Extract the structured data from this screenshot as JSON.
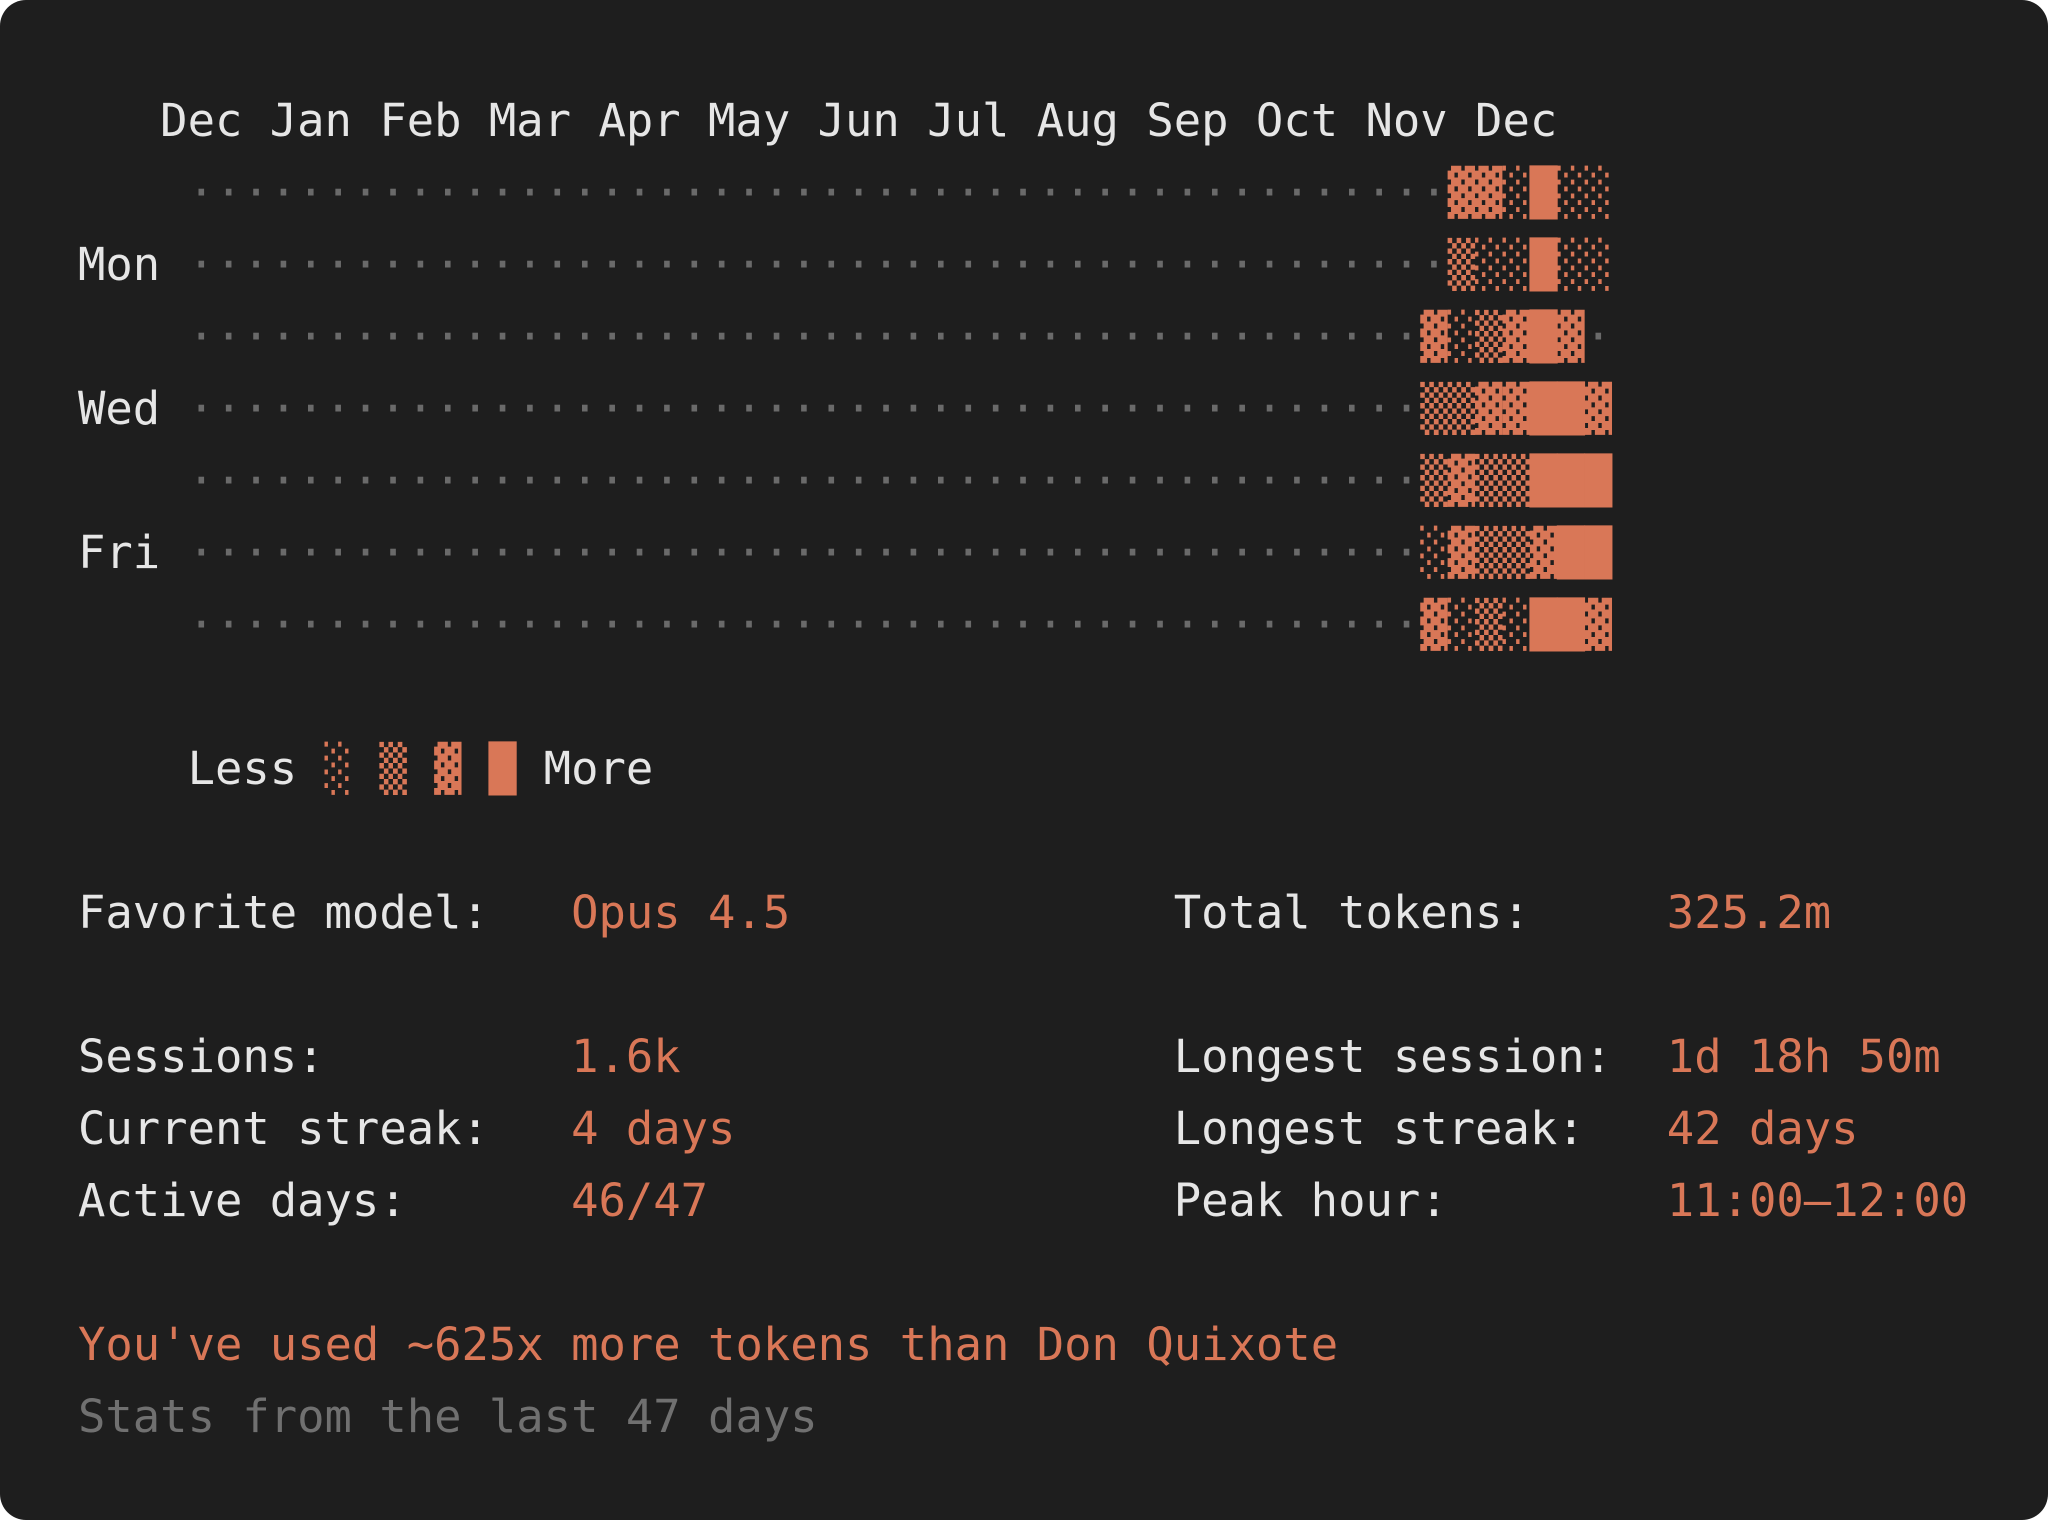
{
  "months": [
    "Dec",
    "Jan",
    "Feb",
    "Mar",
    "Apr",
    "May",
    "Jun",
    "Jul",
    "Aug",
    "Sep",
    "Oct",
    "Nov",
    "Dec"
  ],
  "heatmap": [
    {
      "empty": "··············································",
      "filled": "▓▓░█░░"
    },
    {
      "label": "Mon",
      "empty": "··············································",
      "filled": "▒░░█░░"
    },
    {
      "empty": "·············································",
      "filled": "▓░▒▓█▓",
      "trail": "·"
    },
    {
      "label": "Wed",
      "empty": "·············································",
      "filled": "▒▒▓▓██▓"
    },
    {
      "empty": "·············································",
      "filled": "▒▓▒▒███"
    },
    {
      "label": "Fri",
      "empty": "·············································",
      "filled": "░▓▒▒▓██"
    },
    {
      "empty": "·············································",
      "filled": "▓░▒░██▓"
    }
  ],
  "legend": {
    "less": "Less",
    "levels": [
      "░",
      "▒",
      "▓",
      "█"
    ],
    "more": "More"
  },
  "stat_groups": [
    [
      [
        {
          "label": "Favorite model:",
          "value": "Opus 4.5"
        },
        {
          "label": "Total tokens:",
          "value": "325.2m"
        }
      ]
    ],
    [
      [
        {
          "label": "Sessions:",
          "value": "1.6k"
        },
        {
          "label": "Longest session:",
          "value": "1d 18h 50m"
        }
      ],
      [
        {
          "label": "Current streak:",
          "value": "4 days"
        },
        {
          "label": "Longest streak:",
          "value": "42 days"
        }
      ],
      [
        {
          "label": "Active days:",
          "value": "46/47"
        },
        {
          "label": "Peak hour:",
          "value": "11:00–12:00"
        }
      ]
    ]
  ],
  "comparison": "You've used ~625x more tokens than Don Quixote",
  "note": "Stats from the last 47 days"
}
